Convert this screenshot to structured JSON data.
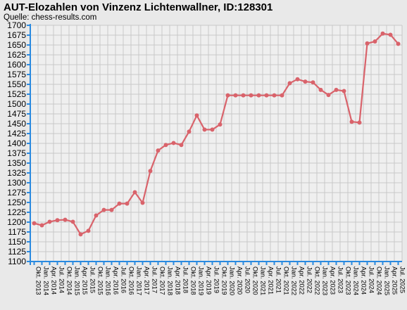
{
  "header": {
    "title": "AUT-Elozahlen von Vinzenz Lichtenwallner, ID:128301",
    "source": "Quelle: chess-results.com"
  },
  "colors": {
    "background": "#e9e9e9",
    "plot_background": "#efefef",
    "grid": "#c8c8c8",
    "axis": "#2a8ae0",
    "line": "#d9636b"
  },
  "chart_data": {
    "type": "line",
    "title": "AUT-Elozahlen von Vinzenz Lichtenwallner, ID:128301",
    "subtitle": "Quelle: chess-results.com",
    "xlabel": "",
    "ylabel": "",
    "ylim": [
      1100,
      1700
    ],
    "y_ticks": [
      1100,
      1125,
      1150,
      1175,
      1200,
      1225,
      1250,
      1275,
      1300,
      1325,
      1350,
      1375,
      1400,
      1425,
      1450,
      1475,
      1500,
      1525,
      1550,
      1575,
      1600,
      1625,
      1650,
      1675,
      1700
    ],
    "grid": true,
    "legend": "none",
    "categories": [
      "Okt. 2013",
      "Jan. 2014",
      "Apr. 2014",
      "Jul. 2014",
      "Okt. 2014",
      "Jan. 2015",
      "Apr. 2015",
      "Jul. 2015",
      "Okt. 2015",
      "Jan. 2016",
      "Apr. 2016",
      "Jul. 2016",
      "Okt. 2016",
      "Jan. 2017",
      "Apr. 2017",
      "Jul. 2017",
      "Okt. 2017",
      "Jan. 2018",
      "Apr. 2018",
      "Jul. 2018",
      "Okt. 2018",
      "Jan. 2019",
      "Apr. 2019",
      "Jul. 2019",
      "Okt. 2019",
      "Jan. 2020",
      "Apr. 2020",
      "Jul. 2020",
      "Okt. 2020",
      "Jan. 2021",
      "Apr. 2021",
      "Jul. 2021",
      "Okt. 2021",
      "Jan. 2022",
      "Apr. 2022",
      "Jul. 2022",
      "Okt. 2022",
      "Jan. 2023",
      "Apr. 2023",
      "Jul. 2023",
      "Okt. 2023",
      "Jan. 2024",
      "Apr. 2024",
      "Jul. 2024",
      "Okt. 2024",
      "Jan. 2025",
      "Apr. 2025",
      "Jul. 2025"
    ],
    "series": [
      {
        "name": "",
        "values": [
          1197,
          1192,
          1201,
          1205,
          1206,
          1201,
          1169,
          1178,
          1217,
          1231,
          1231,
          1247,
          1247,
          1276,
          1249,
          1330,
          1382,
          1396,
          1401,
          1396,
          1430,
          1471,
          1435,
          1435,
          1448,
          1522,
          1522,
          1522,
          1522,
          1522,
          1522,
          1522,
          1522,
          1553,
          1563,
          1557,
          1555,
          1536,
          1523,
          1536,
          1533,
          1455,
          1453,
          1654,
          1659,
          1679,
          1676,
          1653
        ]
      }
    ]
  }
}
